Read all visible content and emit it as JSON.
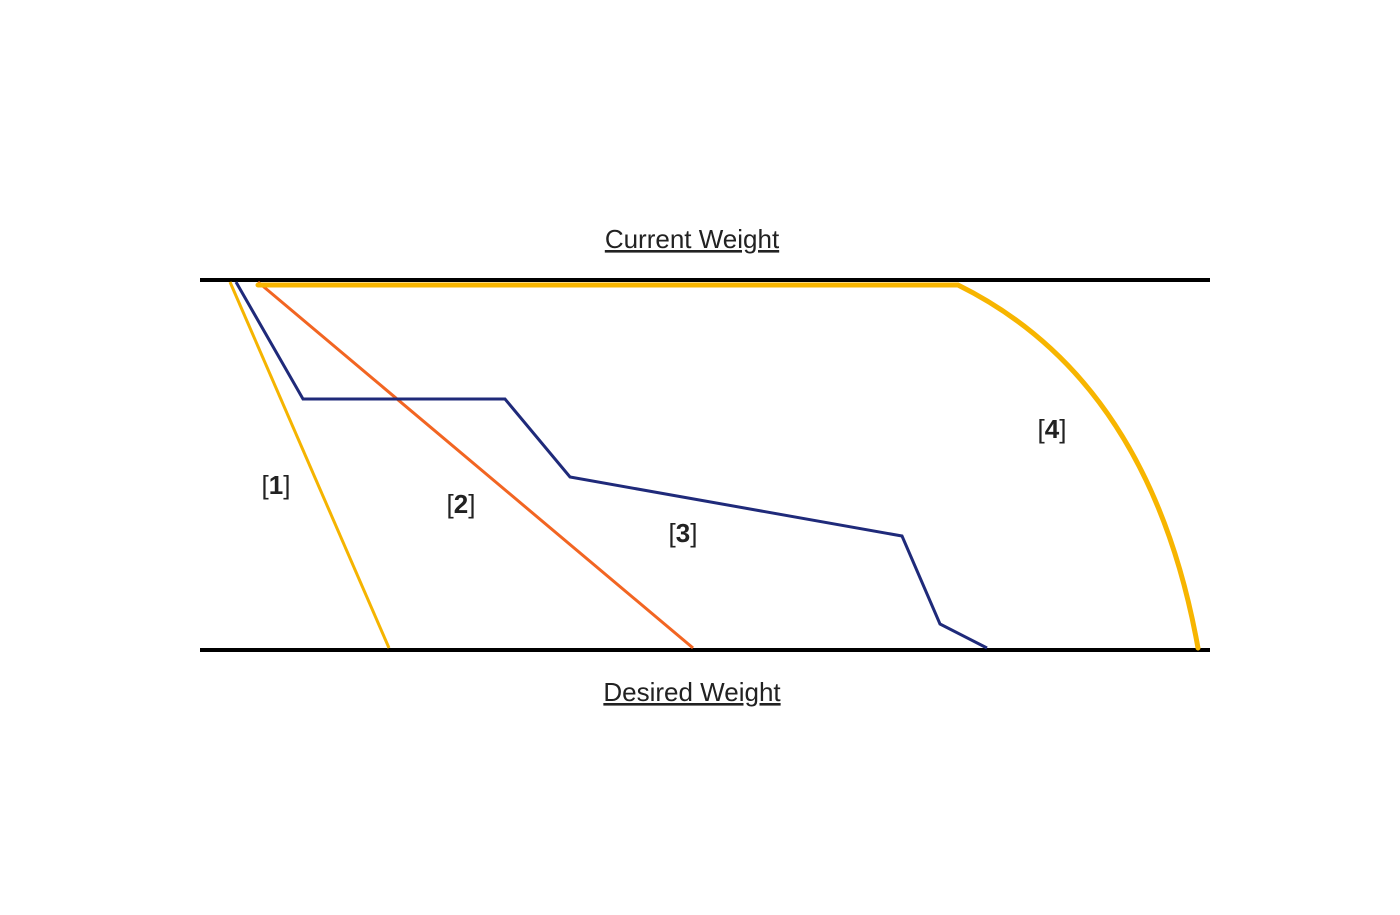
{
  "top_label": "Current Weight",
  "bottom_label": "Desired Weight",
  "paths": [
    {
      "id": "1",
      "label_open": "[",
      "label_number": "1",
      "label_close": "]",
      "color": "#F5B400"
    },
    {
      "id": "2",
      "label_open": "[",
      "label_number": "2",
      "label_close": "]",
      "color": "#F26522"
    },
    {
      "id": "3",
      "label_open": "[",
      "label_number": "3",
      "label_close": "]",
      "color": "#1F2A7A"
    },
    {
      "id": "4",
      "label_open": "[",
      "label_number": "4",
      "label_close": "]",
      "color": "#F7B500"
    }
  ],
  "colors": {
    "boundary_lines": "#000000",
    "text": "#222222",
    "background": "#ffffff"
  }
}
